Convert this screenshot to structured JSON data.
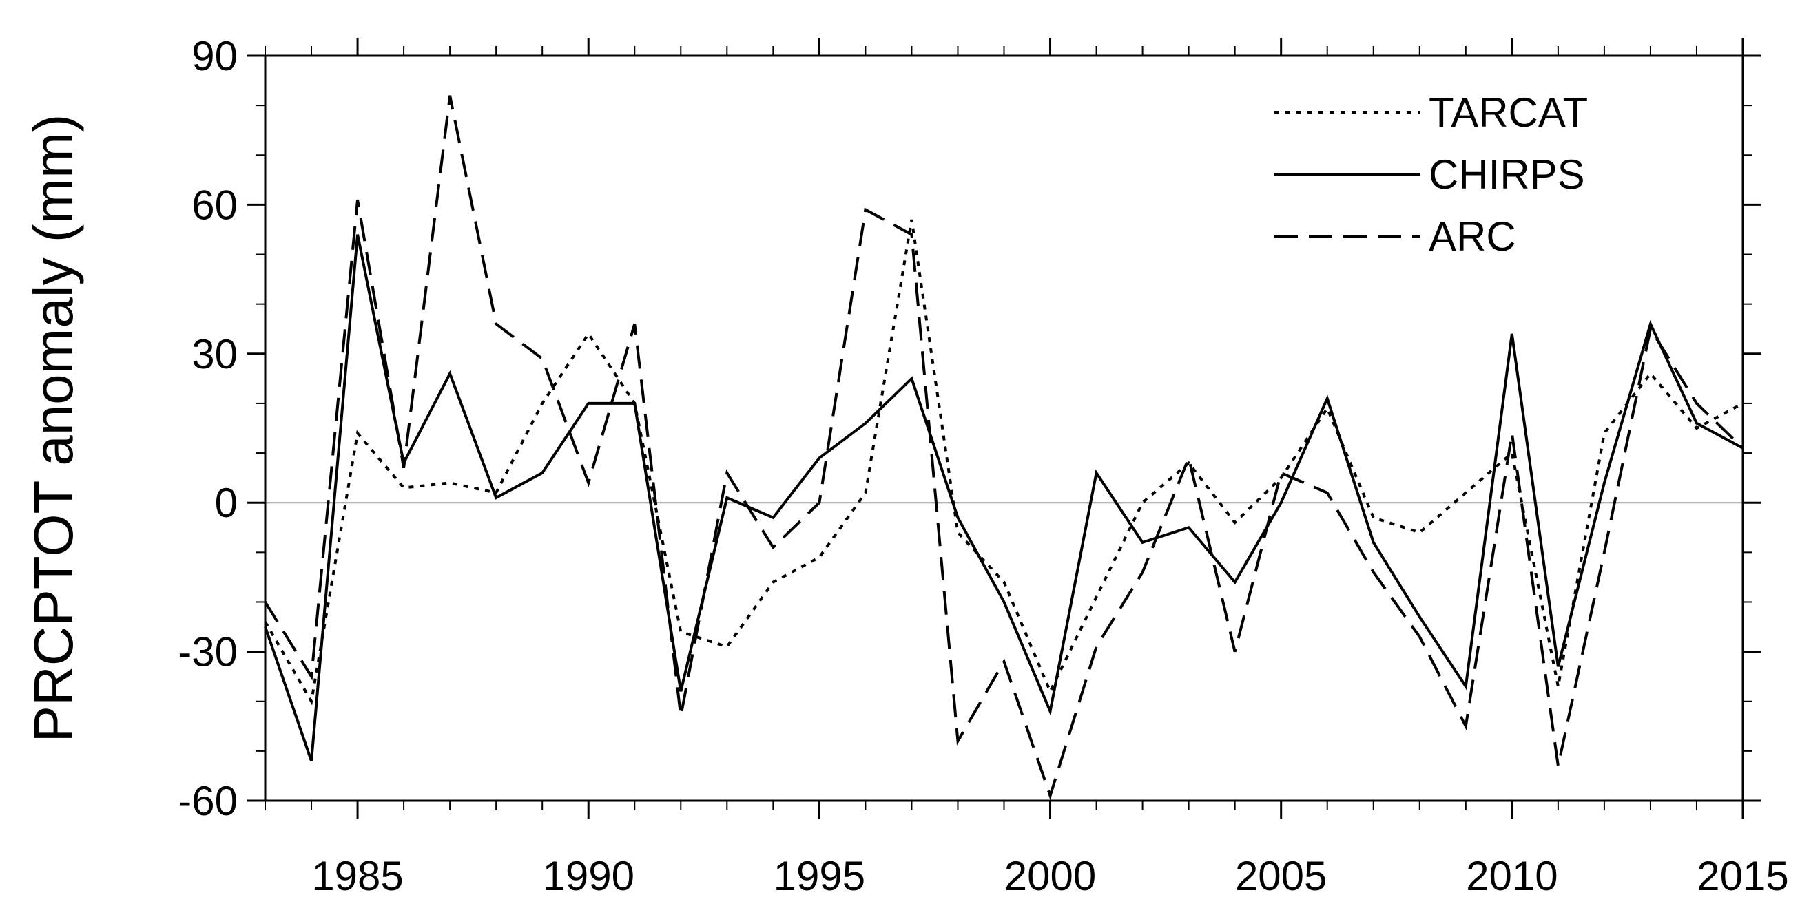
{
  "chart_data": {
    "type": "line",
    "y_label": "PRCPTOT anomaly (mm)",
    "x": [
      1983,
      1984,
      1985,
      1986,
      1987,
      1988,
      1989,
      1990,
      1991,
      1992,
      1993,
      1994,
      1995,
      1996,
      1997,
      1998,
      1999,
      2000,
      2001,
      2002,
      2003,
      2004,
      2005,
      2006,
      2007,
      2008,
      2009,
      2010,
      2011,
      2012,
      2013,
      2014,
      2015
    ],
    "series": [
      {
        "name": "TARCAT",
        "color": "#000000",
        "dash": "dotted",
        "values": [
          -24,
          -40,
          14,
          3,
          4,
          2,
          20,
          34,
          20,
          -26,
          -29,
          -16,
          -11,
          2,
          57,
          -6,
          -16,
          -38,
          -19,
          0,
          8,
          -4,
          5,
          19,
          -3,
          -6,
          2,
          10,
          -37,
          14,
          26,
          15,
          20
        ]
      },
      {
        "name": "CHIRPS",
        "color": "#000000",
        "dash": "solid",
        "values": [
          -25,
          -52,
          54,
          8,
          26,
          1,
          6,
          20,
          20,
          -38,
          1,
          -3,
          9,
          16,
          25,
          -3,
          -20,
          -42,
          6,
          -8,
          -5,
          -16,
          0,
          21,
          -8,
          -23,
          -37,
          34,
          -33,
          4,
          36,
          16,
          11
        ]
      },
      {
        "name": "ARC",
        "color": "#000000",
        "dash": "dashed",
        "values": [
          -20,
          -35,
          61,
          7,
          82,
          36,
          29,
          4,
          36,
          -43,
          6,
          -9,
          0,
          59,
          54,
          -48,
          -32,
          -59,
          -29,
          -14,
          9,
          -30,
          6,
          2,
          -14,
          -27,
          -45,
          14,
          -53,
          -10,
          35,
          20,
          11
        ]
      }
    ],
    "xlim": [
      1983,
      2015
    ],
    "xticks": [
      1985,
      1990,
      1995,
      2000,
      2005,
      2010,
      2015
    ],
    "ylim": [
      -60,
      90
    ],
    "yticks": [
      -60,
      -30,
      0,
      30,
      60,
      90
    ],
    "yminor_ticks": [
      -50,
      -40,
      -20,
      -10,
      10,
      20,
      40,
      50,
      70,
      80
    ],
    "zero_line": true,
    "legend": "upper right"
  }
}
